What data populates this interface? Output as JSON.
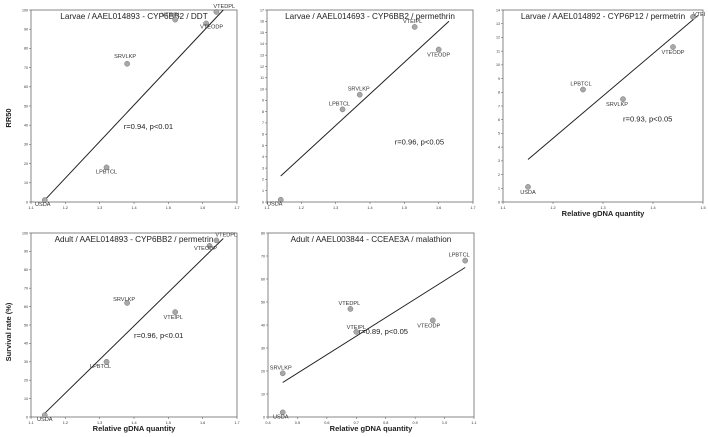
{
  "figure": {
    "ylabels": {
      "row1": "RR50",
      "row2": "Survival rate (%)"
    },
    "xlabel": "Relative gDNA quantity"
  },
  "chart_data": [
    {
      "type": "scatter",
      "title": "Larvae / AAEL014893 - CYP6BB2 / DDT",
      "xlabel": "",
      "ylabel": "RR50",
      "xlim": [
        1.1,
        1.7
      ],
      "ylim": [
        0,
        100
      ],
      "xticks": [
        "1.1",
        "1.2",
        "1.3",
        "1.4",
        "1.5",
        "1.6",
        "1.7"
      ],
      "yticks": [
        "0",
        "10",
        "20",
        "30",
        "40",
        "50",
        "60",
        "70",
        "80",
        "90",
        "100"
      ],
      "points": [
        {
          "label": "USDA",
          "x": 1.14,
          "y": 1
        },
        {
          "label": "LPBTCL",
          "x": 1.32,
          "y": 18
        },
        {
          "label": "SRVLKP",
          "x": 1.38,
          "y": 72
        },
        {
          "label": "VTEIPL",
          "x": 1.52,
          "y": 95
        },
        {
          "label": "VTEDPL",
          "x": 1.64,
          "y": 99
        },
        {
          "label": "VTEODP",
          "x": 1.61,
          "y": 93
        }
      ],
      "trend": {
        "x": [
          1.14,
          1.66
        ],
        "y": [
          1,
          100
        ]
      },
      "annotation": "r=0.94, p<0.01"
    },
    {
      "type": "scatter",
      "title": "Larvae / AAEL014693 - CYP6BB2 / permethrin",
      "xlabel": "",
      "ylabel": "",
      "xlim": [
        1.1,
        1.7
      ],
      "ylim": [
        0,
        17
      ],
      "xticks": [
        "1.1",
        "1.2",
        "1.3",
        "1.4",
        "1.5",
        "1.6",
        "1.7"
      ],
      "yticks": [
        "0",
        "1",
        "2",
        "3",
        "4",
        "5",
        "6",
        "7",
        "8",
        "9",
        "10",
        "11",
        "12",
        "13",
        "14",
        "15",
        "16",
        "17"
      ],
      "points": [
        {
          "label": "USDA",
          "x": 1.14,
          "y": 0.2
        },
        {
          "label": "LPBTCL",
          "x": 1.32,
          "y": 8.2
        },
        {
          "label": "SRVLKP",
          "x": 1.37,
          "y": 9.5
        },
        {
          "label": "VTEIPL",
          "x": 1.53,
          "y": 15.5
        },
        {
          "label": "VTEODP",
          "x": 1.6,
          "y": 13.5
        }
      ],
      "trend": {
        "x": [
          1.14,
          1.63
        ],
        "y": [
          2.3,
          16
        ]
      },
      "annotation": "r=0.96, p<0.05"
    },
    {
      "type": "scatter",
      "title": "Larvae / AAEL014892 - CYP6P12 / permetrin",
      "xlabel": "Relative gDNA quantity",
      "ylabel": "",
      "xlim": [
        1.1,
        1.5
      ],
      "ylim": [
        0,
        14
      ],
      "xticks": [
        "1.1",
        "1.2",
        "1.3",
        "1.4",
        "1.5"
      ],
      "yticks": [
        "0",
        "1",
        "2",
        "3",
        "4",
        "5",
        "6",
        "7",
        "8",
        "9",
        "10",
        "11",
        "12",
        "13",
        "14"
      ],
      "points": [
        {
          "label": "USDA",
          "x": 1.15,
          "y": 1.1
        },
        {
          "label": "LPBTCL",
          "x": 1.26,
          "y": 8.2
        },
        {
          "label": "SRVLKP",
          "x": 1.34,
          "y": 7.5
        },
        {
          "label": "VTEODP",
          "x": 1.44,
          "y": 11.3
        },
        {
          "label": "VTEI",
          "x": 1.48,
          "y": 13.5
        }
      ],
      "trend": {
        "x": [
          1.15,
          1.49
        ],
        "y": [
          3.1,
          13.6
        ]
      },
      "annotation": "r=0.93, p<0.05"
    },
    {
      "type": "scatter",
      "title": "Adult / AAEL014893 - CYP6BB2 / permetrin",
      "xlabel": "Relative gDNA quantity",
      "ylabel": "Survival rate (%)",
      "xlim": [
        1.1,
        1.7
      ],
      "ylim": [
        0,
        100
      ],
      "xticks": [
        "1.1",
        "1.2",
        "1.3",
        "1.4",
        "1.5",
        "1.6",
        "1.7"
      ],
      "yticks": [
        "0",
        "10",
        "20",
        "30",
        "40",
        "50",
        "60",
        "70",
        "80",
        "90",
        "100"
      ],
      "points": [
        {
          "label": "USDA",
          "x": 1.14,
          "y": 1
        },
        {
          "label": "LPBTCL",
          "x": 1.32,
          "y": 30
        },
        {
          "label": "SRVLKP",
          "x": 1.38,
          "y": 62
        },
        {
          "label": "VTEIPL",
          "x": 1.52,
          "y": 57
        },
        {
          "label": "VTEDPL",
          "x": 1.64,
          "y": 96
        },
        {
          "label": "VTEODP",
          "x": 1.62,
          "y": 93
        }
      ],
      "trend": {
        "x": [
          1.14,
          1.66
        ],
        "y": [
          2,
          97
        ]
      },
      "annotation": "r=0.96, p<0.01"
    },
    {
      "type": "scatter",
      "title": "Adult / AAEL003844 - CCEAE3A / malathion",
      "xlabel": "Relative gDNA quantity",
      "ylabel": "",
      "xlim": [
        0.4,
        1.1
      ],
      "ylim": [
        0,
        80
      ],
      "xticks": [
        "0.4",
        "0.5",
        "0.6",
        "0.7",
        "0.8",
        "0.9",
        "1.0",
        "1.1"
      ],
      "yticks": [
        "0",
        "10",
        "20",
        "30",
        "40",
        "50",
        "60",
        "70",
        "80"
      ],
      "points": [
        {
          "label": "USDA",
          "x": 0.45,
          "y": 2
        },
        {
          "label": "SRVLKP",
          "x": 0.45,
          "y": 19
        },
        {
          "label": "VTEDPL",
          "x": 0.68,
          "y": 47
        },
        {
          "label": "VTEIPL",
          "x": 0.7,
          "y": 37
        },
        {
          "label": "VTEODP",
          "x": 0.96,
          "y": 42
        },
        {
          "label": "LPBTCL",
          "x": 1.07,
          "y": 68
        }
      ],
      "trend": {
        "x": [
          0.45,
          1.07
        ],
        "y": [
          15,
          65
        ]
      },
      "annotation": "r=0.89, p<0.05"
    }
  ]
}
